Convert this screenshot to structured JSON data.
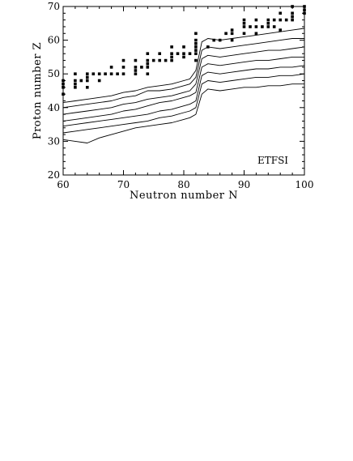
{
  "chart_data": {
    "type": "line",
    "title": "",
    "annotation": "ETFSI",
    "xlabel": "Neutron number N",
    "ylabel": "Proton number Z",
    "xlim": [
      60,
      100
    ],
    "ylim": [
      20,
      70
    ],
    "xticks": [
      60,
      70,
      80,
      90,
      100
    ],
    "yticks": [
      20,
      30,
      40,
      50,
      60,
      70
    ],
    "grid": false,
    "legend": "none",
    "series": [
      {
        "x": [
          60,
          62,
          64,
          66,
          68,
          70,
          72,
          74,
          76,
          78,
          80,
          81,
          82,
          83,
          84,
          86,
          88,
          90,
          92,
          94,
          96,
          98,
          100
        ],
        "y": [
          30.5,
          30,
          29.5,
          31,
          32,
          33,
          34,
          34.5,
          35,
          35.5,
          36.5,
          37,
          38,
          44,
          45.5,
          45,
          45.5,
          46,
          46,
          46.5,
          46.5,
          47,
          47
        ]
      },
      {
        "x": [
          60,
          62,
          64,
          66,
          68,
          70,
          72,
          74,
          76,
          78,
          80,
          81,
          82,
          83,
          84,
          86,
          88,
          90,
          92,
          94,
          96,
          98,
          100
        ],
        "y": [
          32.5,
          33,
          33.5,
          34,
          34.5,
          35,
          35.5,
          36,
          37,
          37.5,
          38.5,
          39,
          40,
          47,
          48,
          47.5,
          48,
          48.5,
          49,
          49,
          49.5,
          49.5,
          50
        ]
      },
      {
        "x": [
          60,
          62,
          64,
          66,
          68,
          70,
          72,
          74,
          76,
          78,
          80,
          81,
          82,
          83,
          84,
          86,
          88,
          90,
          92,
          94,
          96,
          98,
          100
        ],
        "y": [
          34.5,
          35,
          35.5,
          36,
          36.5,
          37,
          37.5,
          38,
          39,
          39.5,
          40.5,
          41,
          42,
          49.5,
          50.5,
          50,
          50.5,
          51,
          51.5,
          51.5,
          52,
          52,
          52.5
        ]
      },
      {
        "x": [
          60,
          62,
          64,
          66,
          68,
          70,
          72,
          74,
          76,
          78,
          80,
          81,
          82,
          83,
          84,
          86,
          88,
          90,
          92,
          94,
          96,
          98,
          100
        ],
        "y": [
          36,
          36.5,
          37,
          37.5,
          38,
          39,
          39.5,
          40.5,
          41.5,
          42,
          43,
          43.5,
          44.5,
          52,
          53,
          52.5,
          53,
          53.5,
          54,
          54,
          54.5,
          55,
          55
        ]
      },
      {
        "x": [
          60,
          62,
          64,
          66,
          68,
          70,
          72,
          74,
          76,
          78,
          80,
          81,
          82,
          83,
          84,
          86,
          88,
          90,
          92,
          94,
          96,
          98,
          100
        ],
        "y": [
          38,
          38.5,
          39,
          39.5,
          40,
          41,
          41.5,
          42.5,
          43,
          43.5,
          44.5,
          45,
          47,
          54.5,
          55.5,
          55,
          55.5,
          56,
          56.5,
          57,
          57,
          57.5,
          58
        ]
      },
      {
        "x": [
          60,
          62,
          64,
          66,
          68,
          70,
          72,
          74,
          76,
          78,
          80,
          81,
          82,
          83,
          84,
          86,
          88,
          90,
          92,
          94,
          96,
          98,
          100
        ],
        "y": [
          40,
          40.5,
          41,
          41.5,
          42,
          43,
          43.5,
          45,
          45,
          45.5,
          46.5,
          47,
          49,
          57,
          58,
          57.5,
          58,
          58.5,
          59,
          59.5,
          60,
          60.5,
          60.5
        ]
      },
      {
        "x": [
          60,
          62,
          64,
          66,
          68,
          70,
          72,
          74,
          76,
          78,
          80,
          81,
          82,
          83,
          84,
          86,
          88,
          90,
          92,
          94,
          96,
          98,
          100
        ],
        "y": [
          41.5,
          42,
          42.5,
          43,
          43.5,
          44.5,
          45,
          46,
          46.5,
          47,
          48,
          48.5,
          51,
          59.5,
          60.5,
          60,
          60.5,
          61,
          61.5,
          62,
          62.5,
          63,
          63.5
        ]
      }
    ],
    "points": [
      [
        60,
        44
      ],
      [
        60,
        46
      ],
      [
        60,
        47
      ],
      [
        60,
        48
      ],
      [
        62,
        46
      ],
      [
        62,
        47
      ],
      [
        62,
        48
      ],
      [
        62,
        50
      ],
      [
        63,
        48
      ],
      [
        64,
        46
      ],
      [
        64,
        48
      ],
      [
        64,
        49
      ],
      [
        64,
        50
      ],
      [
        65,
        50
      ],
      [
        66,
        48
      ],
      [
        66,
        50
      ],
      [
        67,
        50
      ],
      [
        68,
        50
      ],
      [
        68,
        52
      ],
      [
        69,
        50
      ],
      [
        70,
        50
      ],
      [
        70,
        52
      ],
      [
        70,
        54
      ],
      [
        72,
        50
      ],
      [
        72,
        51
      ],
      [
        72,
        52
      ],
      [
        72,
        54
      ],
      [
        73,
        52
      ],
      [
        74,
        50
      ],
      [
        74,
        52
      ],
      [
        74,
        53
      ],
      [
        74,
        54
      ],
      [
        74,
        56
      ],
      [
        75,
        54
      ],
      [
        76,
        54
      ],
      [
        76,
        56
      ],
      [
        77,
        54
      ],
      [
        78,
        54
      ],
      [
        78,
        55
      ],
      [
        78,
        56
      ],
      [
        78,
        58
      ],
      [
        79,
        56
      ],
      [
        80,
        55
      ],
      [
        80,
        56
      ],
      [
        80,
        58
      ],
      [
        81,
        56
      ],
      [
        82,
        54
      ],
      [
        82,
        56
      ],
      [
        82,
        57
      ],
      [
        82,
        58
      ],
      [
        82,
        59
      ],
      [
        82,
        60
      ],
      [
        82,
        62
      ],
      [
        84,
        58
      ],
      [
        85,
        60
      ],
      [
        86,
        60
      ],
      [
        87,
        62
      ],
      [
        88,
        60
      ],
      [
        88,
        62
      ],
      [
        88,
        63
      ],
      [
        90,
        62
      ],
      [
        90,
        64
      ],
      [
        90,
        65
      ],
      [
        90,
        66
      ],
      [
        91,
        64
      ],
      [
        92,
        62
      ],
      [
        92,
        64
      ],
      [
        92,
        66
      ],
      [
        93,
        64
      ],
      [
        94,
        64
      ],
      [
        94,
        65
      ],
      [
        94,
        66
      ],
      [
        95,
        64
      ],
      [
        95,
        66
      ],
      [
        96,
        63
      ],
      [
        96,
        66
      ],
      [
        96,
        68
      ],
      [
        97,
        66
      ],
      [
        98,
        66
      ],
      [
        98,
        67
      ],
      [
        98,
        68
      ],
      [
        98,
        70
      ],
      [
        100,
        68
      ],
      [
        100,
        69
      ],
      [
        100,
        70
      ]
    ]
  }
}
